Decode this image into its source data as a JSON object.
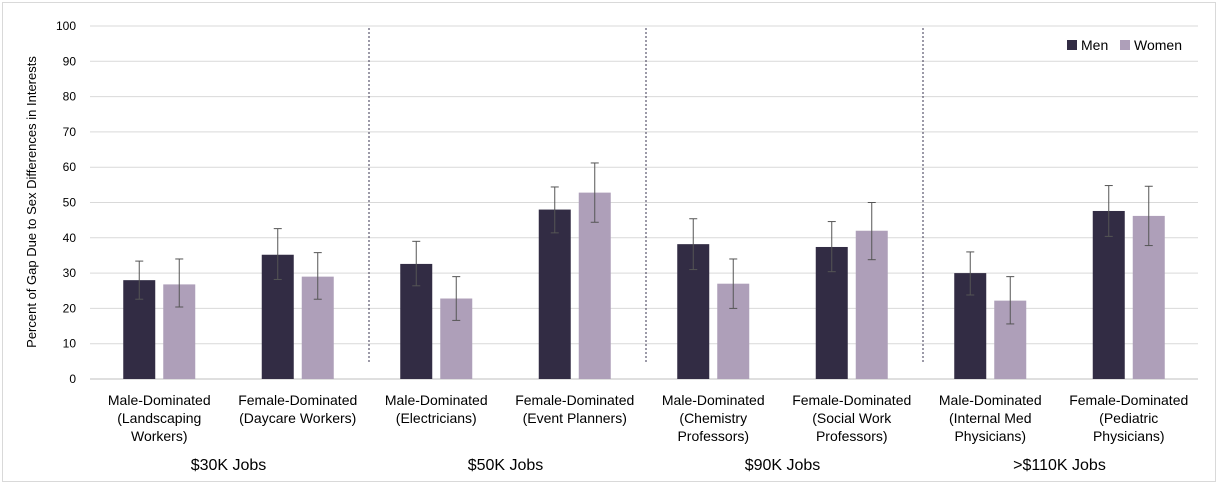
{
  "chart_data": {
    "type": "bar",
    "ylabel": "Percent of Gap Due to Sex Differences in Interests",
    "ylim": [
      0,
      100
    ],
    "yticks": [
      "0",
      "10",
      "20",
      "30",
      "40",
      "50",
      "60",
      "70",
      "80",
      "90",
      "100"
    ],
    "grid": true,
    "legend_position": "top-right",
    "categories": [
      [
        "Male-Dominated",
        "(Landscaping",
        "Workers)"
      ],
      [
        "Female-Dominated",
        "(Daycare Workers)"
      ],
      [
        "Male-Dominated",
        "(Electricians)"
      ],
      [
        "Female-Dominated",
        "(Event Planners)"
      ],
      [
        "Male-Dominated",
        "(Chemistry",
        "Professors)"
      ],
      [
        "Female-Dominated",
        "(Social Work",
        "Professors)"
      ],
      [
        "Male-Dominated",
        "(Internal Med",
        "Physicians)"
      ],
      [
        "Female-Dominated",
        "(Pediatric",
        "Physicians)"
      ]
    ],
    "groups": [
      "$30K Jobs",
      "$50K Jobs",
      "$90K Jobs",
      ">$110K Jobs"
    ],
    "series": [
      {
        "name": "Men",
        "color": "#322c44",
        "values": [
          28,
          35.2,
          32.6,
          48,
          38.2,
          37.4,
          30,
          47.6
        ],
        "error_low": [
          22.6,
          28.2,
          26.4,
          41.4,
          31,
          30.4,
          23.8,
          40.4
        ],
        "error_high": [
          33.4,
          42.6,
          39,
          54.4,
          45.4,
          44.6,
          36,
          54.8
        ]
      },
      {
        "name": "Women",
        "color": "#ae9fb9",
        "values": [
          26.8,
          29,
          22.8,
          52.8,
          27,
          42,
          22.2,
          46.2
        ],
        "error_low": [
          20.4,
          22.6,
          16.6,
          44.4,
          20,
          33.8,
          15.6,
          37.8
        ],
        "error_high": [
          34,
          35.8,
          29,
          61.2,
          34,
          50,
          29,
          54.6
        ]
      }
    ]
  }
}
